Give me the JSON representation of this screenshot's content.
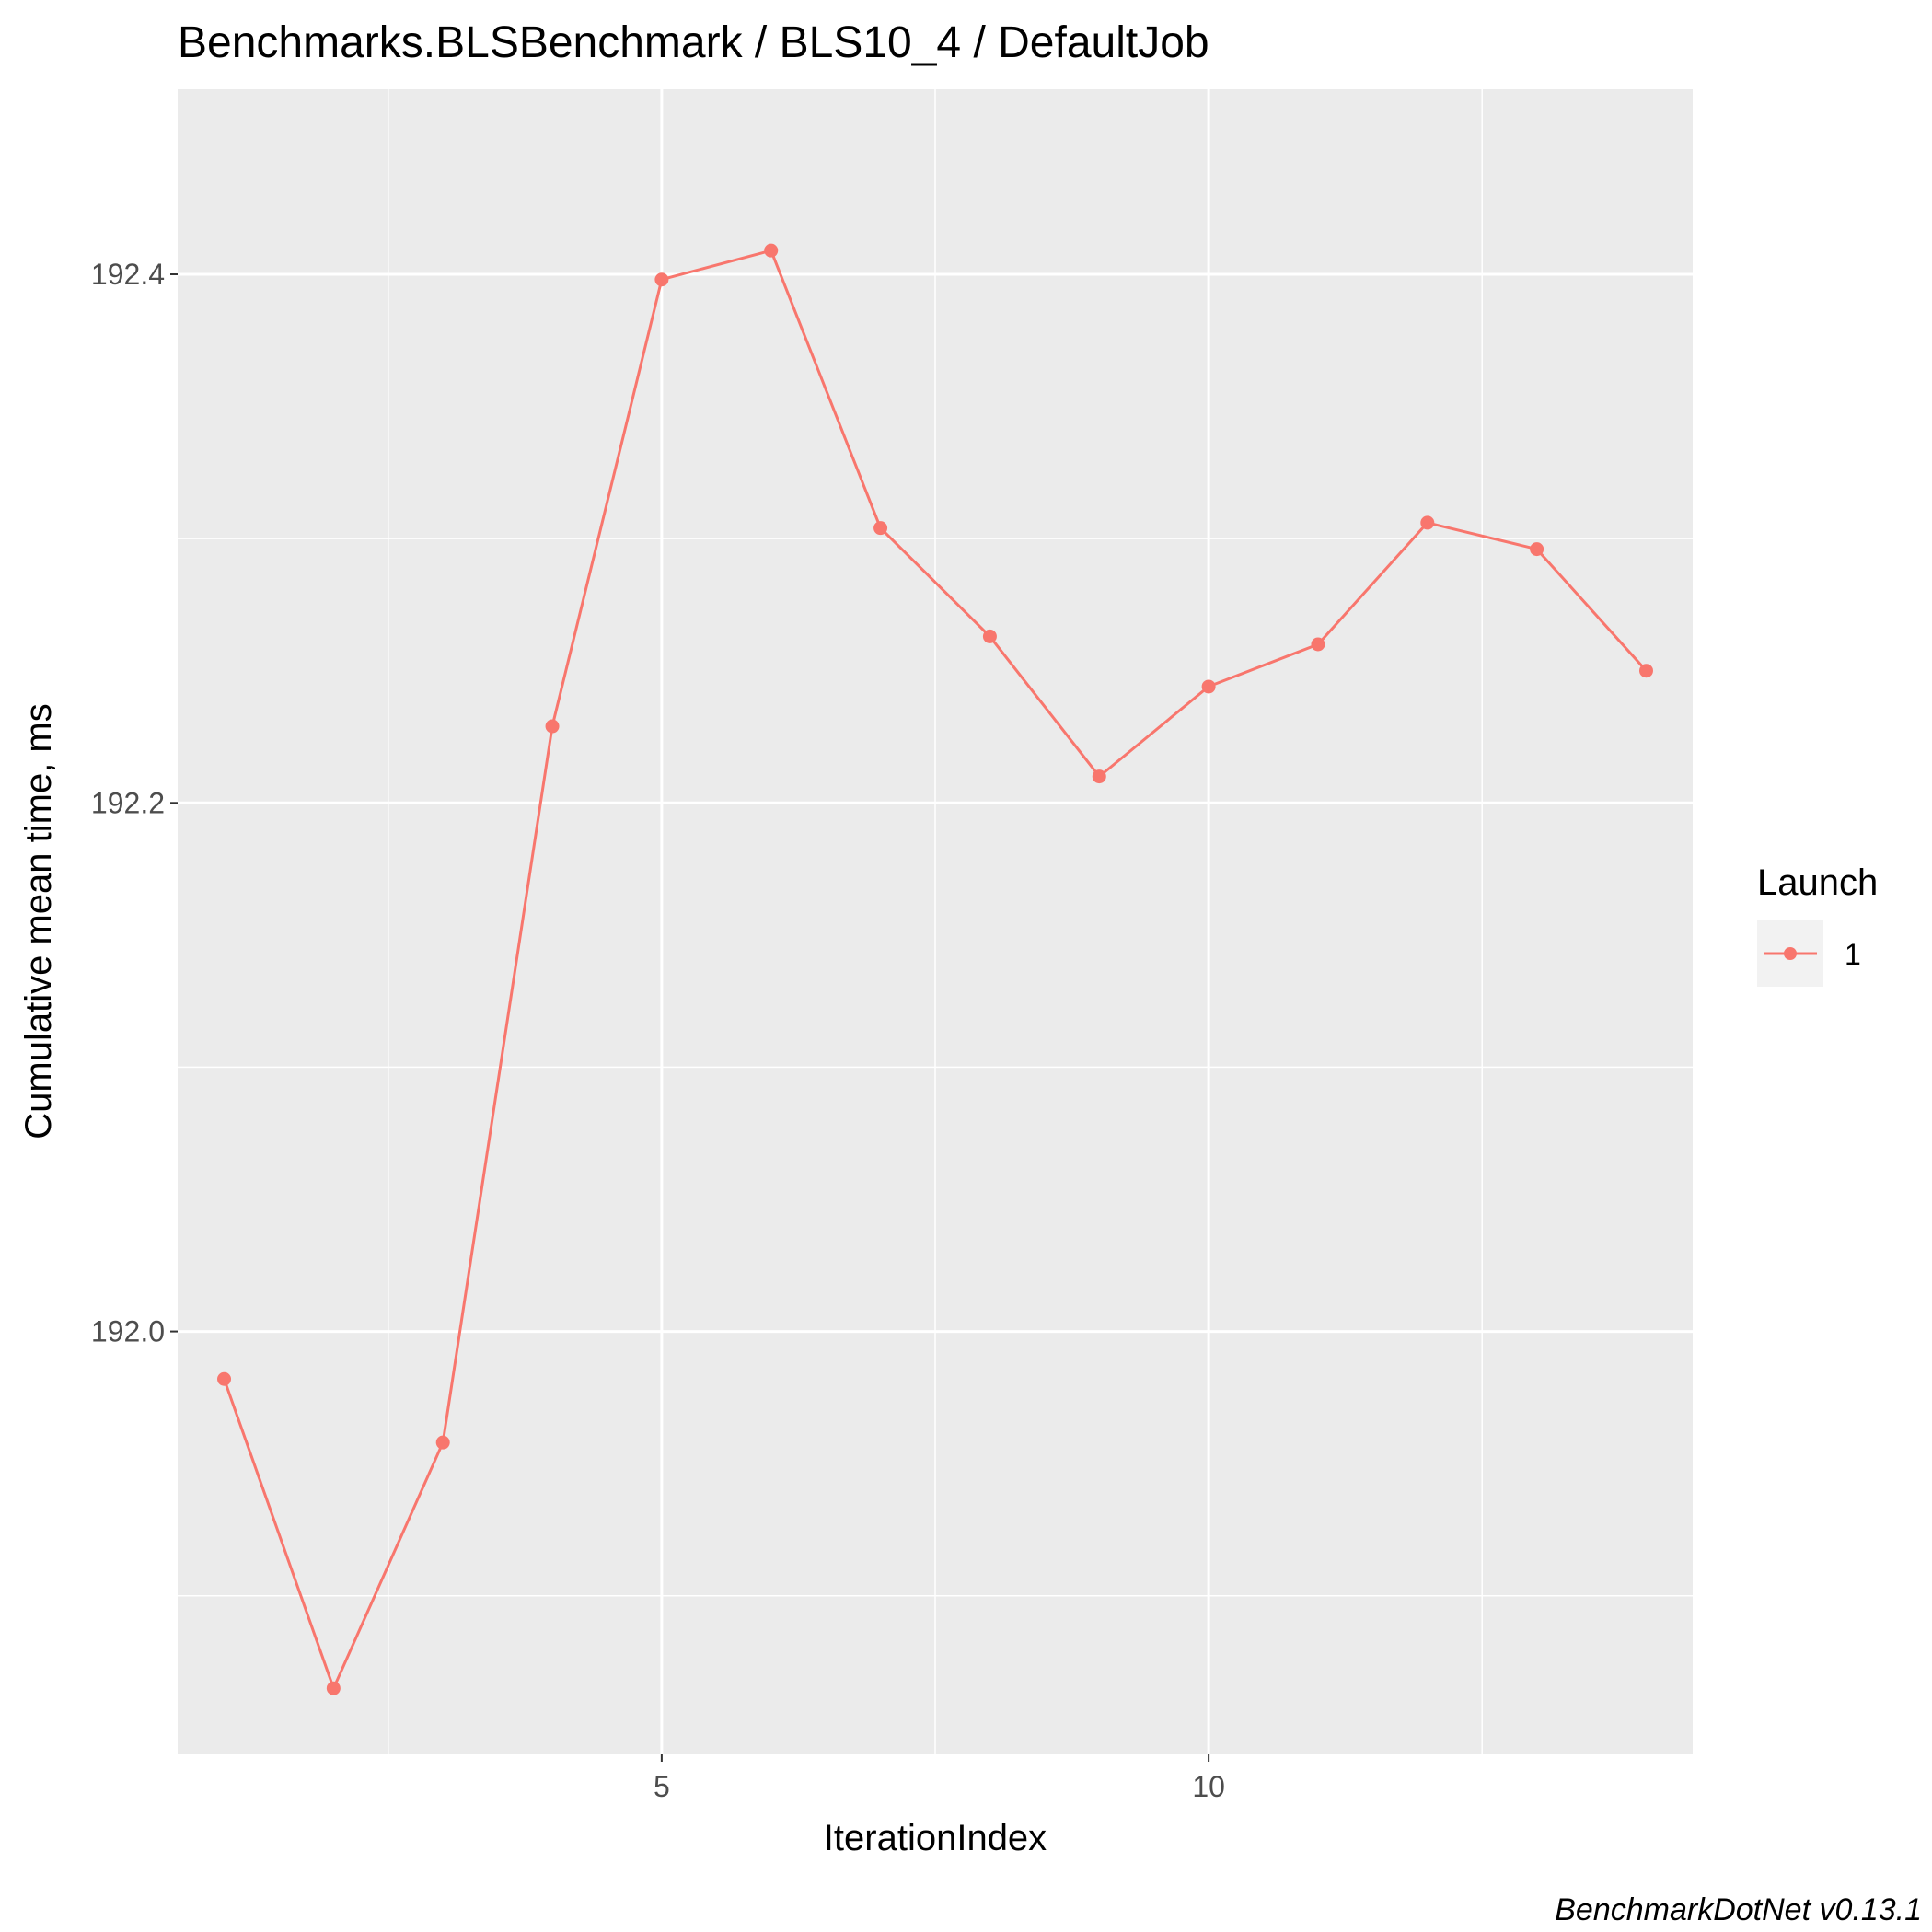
{
  "chart_data": {
    "type": "line",
    "title": "Benchmarks.BLSBenchmark / BLS10_4 / DefaultJob",
    "xlabel": "IterationIndex",
    "ylabel": "Cumulative mean time, ms",
    "caption": "BenchmarkDotNet v0.13.1",
    "x": [
      1,
      2,
      3,
      4,
      5,
      6,
      7,
      8,
      9,
      10,
      11,
      12,
      13,
      14
    ],
    "series": [
      {
        "name": "1",
        "color": "#F8766D",
        "values": [
          191.982,
          191.865,
          191.958,
          192.229,
          192.398,
          192.409,
          192.304,
          192.263,
          192.21,
          192.244,
          192.26,
          192.306,
          192.296,
          192.25
        ]
      }
    ],
    "xlim": [
      0.575,
      14.425
    ],
    "ylim": [
      191.84,
      192.47
    ],
    "x_major_ticks": [
      5,
      10
    ],
    "x_minor_ticks": [
      2.5,
      7.5,
      12.5
    ],
    "y_major_ticks": [
      192.0,
      192.2,
      192.4
    ],
    "y_minor_ticks": [
      191.9,
      192.1,
      192.3
    ],
    "x_tick_labels": [
      "5",
      "10"
    ],
    "y_tick_labels": [
      "192.0",
      "192.2",
      "192.4"
    ],
    "legend_title": "Launch",
    "legend_position": "right",
    "grid": true,
    "panel_background": "#EBEBEB",
    "grid_color": "#FFFFFF"
  }
}
